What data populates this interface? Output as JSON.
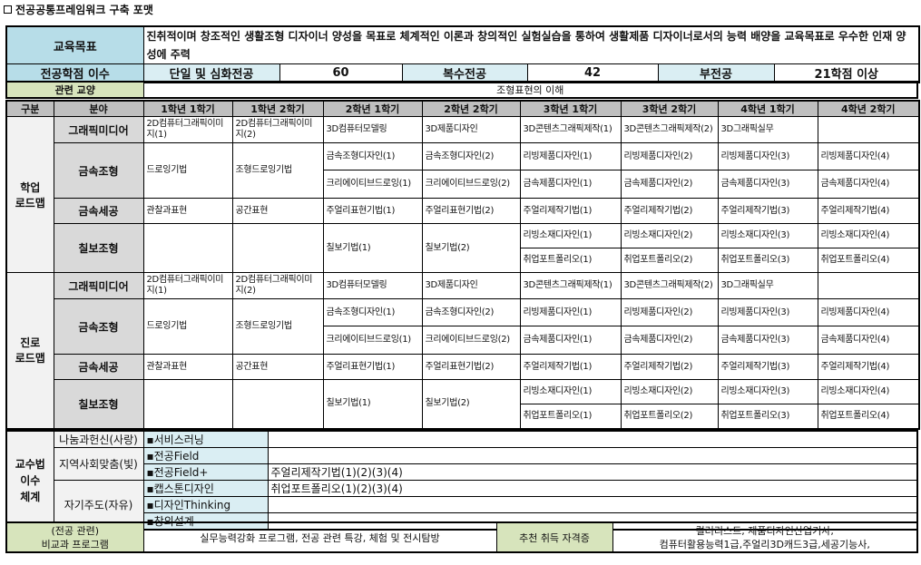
{
  "title": "전공공통프레임워크 구축 포맷",
  "objective": {
    "label": "교육목표",
    "text": "진취적이며 창조적인 생활조형 디자이너 양성을 목표로 체계적인 이론과 창의적인 실험실습을 통하여 생활제품 디자이너로서의 능력 배양을 교육목표로 우수한 인재 양성에 주력"
  },
  "credits": {
    "label": "전공학점 이수",
    "single_label": "단일 및 심화전공",
    "single_value": "60",
    "double_label": "복수전공",
    "double_value": "42",
    "minor_label": "부전공",
    "minor_value": "21학점 이상"
  },
  "related": {
    "label": "관련 교양",
    "value": "조형표현의 이해"
  },
  "headers": [
    "구분",
    "분야",
    "1학년 1학기",
    "1학년 2학기",
    "2학년 1학기",
    "2학년 2학기",
    "3학년 1학기",
    "3학년 2학기",
    "4학년 1학기",
    "4학년 2학기"
  ],
  "roadmaps": [
    {
      "section": "학업\n로드맵",
      "rows": [
        [
          {
            "f": "그래픽미디어"
          },
          {
            "t": "2D컴퓨터그래픽이미지(1)"
          },
          {
            "t": "2D컴퓨터그래픽이미지(2)"
          },
          {
            "t": "3D컴퓨터모델링"
          },
          {
            "t": "3D제품디자인"
          },
          {
            "t": "3D콘텐츠그래픽제작(1)"
          },
          {
            "t": "3D콘텐츠그래픽제작(2)"
          },
          {
            "t": "3D그래픽실무"
          },
          {
            "t": ""
          }
        ],
        [
          {
            "f": "금속조형",
            "rs": 2
          },
          {
            "t": "드로잉기법",
            "rs": 2
          },
          {
            "t": "조형드로잉기법",
            "rs": 2
          },
          {
            "t": "금속조형디자인(1)"
          },
          {
            "t": "금속조형디자인(2)"
          },
          {
            "t": "리빙제품디자인(1)"
          },
          {
            "t": "리빙제품디자인(2)"
          },
          {
            "t": "리빙제품디자인(3)"
          },
          {
            "t": "리빙제품디자인(4)"
          }
        ],
        [
          {
            "t": "크리에이티브드로잉(1)"
          },
          {
            "t": "크리에이티브드로잉(2)"
          },
          {
            "t": "금속제품디자인(1)"
          },
          {
            "t": "금속제품디자인(2)"
          },
          {
            "t": "금속제품디자인(3)"
          },
          {
            "t": "금속제품디자인(4)"
          }
        ],
        [
          {
            "f": "금속세공"
          },
          {
            "t": "관찰과표현"
          },
          {
            "t": "공간표현"
          },
          {
            "t": "주얼리표현기법(1)"
          },
          {
            "t": "주얼리표현기법(2)"
          },
          {
            "t": "주얼리제작기법(1)"
          },
          {
            "t": "주얼리제작기법(2)"
          },
          {
            "t": "주얼리제작기법(3)"
          },
          {
            "t": "주얼리제작기법(4)"
          }
        ],
        [
          {
            "f": "칠보조형",
            "rs": 2
          },
          {
            "t": "",
            "rs": 2
          },
          {
            "t": "",
            "rs": 2
          },
          {
            "t": "칠보기법(1)",
            "rs": 2
          },
          {
            "t": "칠보기법(2)",
            "rs": 2
          },
          {
            "t": "리빙소재디자인(1)"
          },
          {
            "t": "리빙소재디자인(2)"
          },
          {
            "t": "리빙소재디자인(3)"
          },
          {
            "t": "리빙소재디자인(4)"
          }
        ],
        [
          {
            "t": "취업포트폴리오(1)"
          },
          {
            "t": "취업포트폴리오(2)"
          },
          {
            "t": "취업포트폴리오(3)"
          },
          {
            "t": "취업포트폴리오(4)"
          }
        ]
      ]
    },
    {
      "section": "진로\n로드맵",
      "rows": [
        [
          {
            "f": "그래픽미디어"
          },
          {
            "t": "2D컴퓨터그래픽이미지(1)"
          },
          {
            "t": "2D컴퓨터그래픽이미지(2)"
          },
          {
            "t": "3D컴퓨터모델링"
          },
          {
            "t": "3D제품디자인"
          },
          {
            "t": "3D콘텐츠그래픽제작(1)"
          },
          {
            "t": "3D콘텐츠그래픽제작(2)"
          },
          {
            "t": "3D그래픽실무"
          },
          {
            "t": ""
          }
        ],
        [
          {
            "f": "금속조형",
            "rs": 2
          },
          {
            "t": "드로잉기법",
            "rs": 2
          },
          {
            "t": "조형드로잉기법",
            "rs": 2
          },
          {
            "t": "금속조형디자인(1)"
          },
          {
            "t": "금속조형디자인(2)"
          },
          {
            "t": "리빙제품디자인(1)"
          },
          {
            "t": "리빙제품디자인(2)"
          },
          {
            "t": "리빙제품디자인(3)"
          },
          {
            "t": "리빙제품디자인(4)"
          }
        ],
        [
          {
            "t": "크리에이티브드로잉(1)"
          },
          {
            "t": "크리에이티브드로잉(2)"
          },
          {
            "t": "금속제품디자인(1)"
          },
          {
            "t": "금속제품디자인(2)"
          },
          {
            "t": "금속제품디자인(3)"
          },
          {
            "t": "금속제품디자인(4)"
          }
        ],
        [
          {
            "f": "금속세공"
          },
          {
            "t": "관찰과표현"
          },
          {
            "t": "공간표현"
          },
          {
            "t": "주얼리표현기법(1)"
          },
          {
            "t": "주얼리표현기법(2)"
          },
          {
            "t": "주얼리제작기법(1)"
          },
          {
            "t": "주얼리제작기법(2)"
          },
          {
            "t": "주얼리제작기법(3)"
          },
          {
            "t": "주얼리제작기법(4)"
          }
        ],
        [
          {
            "f": "칠보조형",
            "rs": 2
          },
          {
            "t": "",
            "rs": 2
          },
          {
            "t": "",
            "rs": 2
          },
          {
            "t": "칠보기법(1)",
            "rs": 2
          },
          {
            "t": "칠보기법(2)",
            "rs": 2
          },
          {
            "t": "리빙소재디자인(1)"
          },
          {
            "t": "리빙소재디자인(2)"
          },
          {
            "t": "리빙소재디자인(3)"
          },
          {
            "t": "리빙소재디자인(4)"
          }
        ],
        [
          {
            "t": "취업포트폴리오(1)"
          },
          {
            "t": "취업포트폴리오(2)"
          },
          {
            "t": "취업포트폴리오(3)"
          },
          {
            "t": "취업포트폴리오(4)"
          }
        ]
      ]
    }
  ],
  "teaching": {
    "section": "교수법\n이수\n체계",
    "groups": [
      "나눔과헌신(사랑)",
      "지역사회맞춤(빛)",
      "자기주도(자유)"
    ],
    "items": [
      {
        "name": "▪서비스러닝",
        "value": ""
      },
      {
        "name": "▪전공Field",
        "value": ""
      },
      {
        "name": "▪전공Field+",
        "value": "주얼리제작기법(1)(2)(3)(4)"
      },
      {
        "name": "▪캡스톤디자인",
        "value": "취업포트폴리오(1)(2)(3)(4)"
      },
      {
        "name": "▪디자인Thinking",
        "value": ""
      },
      {
        "name": "▪창의설계",
        "value": ""
      }
    ]
  },
  "extra": {
    "label_line1": "(전공 관련)",
    "label_line2": "비교과 프로그램",
    "programs": "실무능력강화 프로그램, 전공 관련 특강,  체험 및 전시탐방",
    "cert_label": "추천 취득 자격증",
    "cert_line1": "컬러리스트, 제품디자인산업기사,",
    "cert_line2": "컴퓨터활용능력1급,주얼리3D캐드3급,세공기능사,"
  }
}
